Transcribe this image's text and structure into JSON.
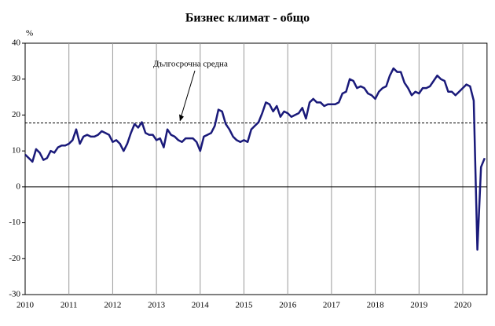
{
  "chart_data": {
    "type": "line",
    "title": "Бизнес климат - общо",
    "y_label": "%",
    "categories": [
      "2010",
      null,
      null,
      null,
      null,
      null,
      null,
      null,
      null,
      null,
      null,
      null,
      "2011",
      null,
      null,
      null,
      null,
      null,
      null,
      null,
      null,
      null,
      null,
      null,
      "2012",
      null,
      null,
      null,
      null,
      null,
      null,
      null,
      null,
      null,
      null,
      null,
      "2013",
      null,
      null,
      null,
      null,
      null,
      null,
      null,
      null,
      null,
      null,
      null,
      "2014",
      null,
      null,
      null,
      null,
      null,
      null,
      null,
      null,
      null,
      null,
      null,
      "2015",
      null,
      null,
      null,
      null,
      null,
      null,
      null,
      null,
      null,
      null,
      null,
      "2016",
      null,
      null,
      null,
      null,
      null,
      null,
      null,
      null,
      null,
      null,
      null,
      "2017",
      null,
      null,
      null,
      null,
      null,
      null,
      null,
      null,
      null,
      null,
      null,
      "2018",
      null,
      null,
      null,
      null,
      null,
      null,
      null,
      null,
      null,
      null,
      null,
      "2019",
      null,
      null,
      null,
      null,
      null,
      null,
      null,
      null,
      null,
      null,
      null,
      "2020",
      null,
      null,
      null,
      null,
      null,
      null
    ],
    "series": [
      {
        "color": "#1a1a7a",
        "values": [
          9,
          8,
          7,
          10.5,
          9.5,
          7.5,
          8,
          10,
          9.5,
          11,
          11.5,
          11.5,
          12,
          13,
          16,
          12,
          14,
          14.5,
          14,
          14,
          14.5,
          15.5,
          15,
          14.5,
          12.5,
          13,
          12,
          10,
          12,
          15,
          17.5,
          16.5,
          18,
          15,
          14.5,
          14.5,
          13,
          13.5,
          11,
          16,
          14.5,
          14,
          13,
          12.5,
          13.5,
          13.5,
          13.5,
          12.5,
          10,
          14,
          14.5,
          15,
          17,
          21.5,
          21,
          17.5,
          16,
          14,
          13,
          12.5,
          13,
          12.5,
          16,
          17,
          18,
          20.5,
          23.5,
          23,
          21,
          22.5,
          19.5,
          21,
          20.5,
          19.5,
          20,
          20.5,
          22,
          19,
          23.5,
          24.5,
          23.5,
          23.5,
          22.5,
          23,
          23,
          23,
          23.5,
          26,
          26.5,
          30,
          29.5,
          27.5,
          28,
          27.5,
          26,
          25.5,
          24.5,
          26.5,
          27.5,
          28,
          31,
          33,
          32,
          32,
          29,
          27.5,
          25.5,
          26.5,
          26,
          27.5,
          27.5,
          28,
          29.5,
          31,
          30,
          29.5,
          26.5,
          26.5,
          25.5,
          26.5,
          27.5,
          28.5,
          28,
          24,
          -17.5,
          5.5,
          8
        ]
      }
    ],
    "ylim": [
      -30,
      40
    ],
    "yticks": [
      -30,
      -20,
      -10,
      0,
      10,
      20,
      30,
      40
    ],
    "grid": true,
    "reference_line": {
      "value": 17.8,
      "label": "Дългосрочна средна"
    }
  }
}
